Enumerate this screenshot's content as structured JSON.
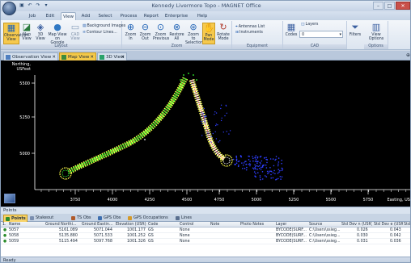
{
  "window": {
    "title": "Kennedy Livermore Topo - MAGNET Office"
  },
  "ribbon_tabs": [
    "Job",
    "Edit",
    "View",
    "Add",
    "Select",
    "Process",
    "Report",
    "Enterprise",
    "Help"
  ],
  "active_ribbon_tab": "View",
  "ribbon": {
    "groups": [
      "Layout",
      "Zoom",
      "Equipment",
      "CAD",
      "Options"
    ],
    "layout_buttons": [
      "Observation View",
      "Map View",
      "3D View",
      "Map View on Google Earth",
      "CAD View"
    ],
    "layout_small": [
      "Background Images",
      "Contour Lines..."
    ],
    "zoom_buttons": [
      "Zoom In",
      "Zoom Out",
      "Zoom Previous",
      "Restore All",
      "Zoom to Selection",
      "Pan Mode",
      "Rotate Mode"
    ],
    "equipment_small": [
      "Antennas List",
      "Instruments"
    ],
    "cad_buttons": [
      "Codes"
    ],
    "layers_label": "Layers",
    "layer_value": "0",
    "filters_label": "Filters",
    "view_options_label": "View Options"
  },
  "doc_tabs": [
    {
      "label": "Observation View",
      "active": false
    },
    {
      "label": "Map View",
      "active": true
    },
    {
      "label": "3D View",
      "active": false
    }
  ],
  "map": {
    "y_axis_title": "Northing, USFeet",
    "y_ticks": [
      "5500",
      "5250",
      "5000"
    ],
    "x_ticks": [
      "3750",
      "4000",
      "4250",
      "4500",
      "4750",
      "5000",
      "5250",
      "5500",
      "5750"
    ],
    "x_axis_title": "Easting, US",
    "colors": {
      "road_outline": "#ffff4a",
      "road_fill_left": "#31ff31",
      "road_fill_right": "#ffffff",
      "crown": "#ff3030",
      "points_blue": "#2f3fff"
    }
  },
  "points_panel": {
    "title": "Points",
    "tabs": [
      "Points",
      "Stakeout Reports",
      "TS Obs",
      "GPS Obs",
      "GPS Occupations",
      "Lines"
    ],
    "active_tab": "Points",
    "columns": [
      "Name",
      "Ground Northi...",
      "Ground Eastin...",
      "Elevation (USft)",
      "Code",
      "Control",
      "Note",
      "Photo Notes",
      "Layer",
      "Source",
      "Std Dev n (USft)",
      "Std Dev e (USft)",
      "Std"
    ],
    "rows": [
      {
        "name": "5057",
        "north": "5161.089",
        "east": "5071.044",
        "elev": "1001.177",
        "code": "GS",
        "control": "None",
        "layer": "BYCODE(SURF...",
        "source": "C:\\Users\\ssieg...",
        "sdn": "0.026",
        "sde": "0.043"
      },
      {
        "name": "5058",
        "north": "5135.880",
        "east": "5071.533",
        "elev": "1001.252",
        "code": "GS",
        "control": "None",
        "layer": "BYCODE(SURF...",
        "source": "C:\\Users\\ssieg...",
        "sdn": "0.030",
        "sde": "0.042"
      },
      {
        "name": "5059",
        "north": "5115.494",
        "east": "5097.768",
        "elev": "1001.326",
        "code": "GS",
        "control": "None",
        "layer": "BYCODE(SURF...",
        "source": "C:\\Users\\ssieg...",
        "sdn": "0.031",
        "sde": "0.036"
      }
    ]
  },
  "status": {
    "text": "Ready"
  }
}
